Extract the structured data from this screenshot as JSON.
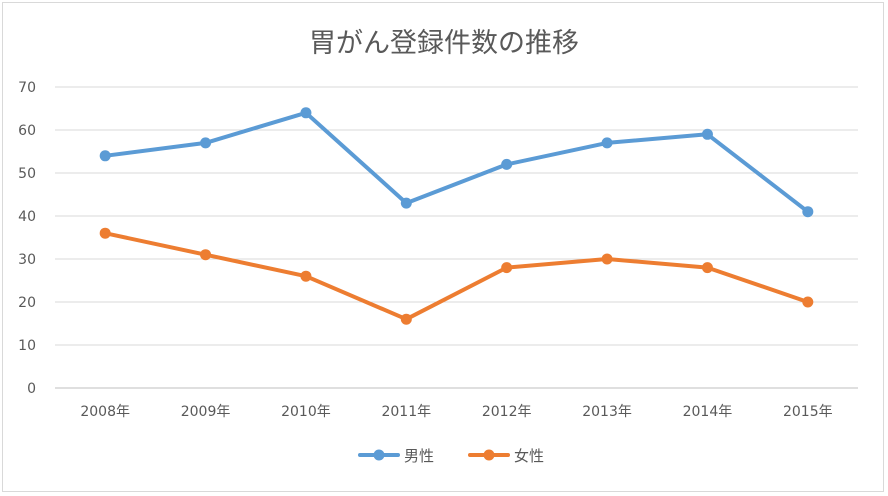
{
  "chart_data": {
    "type": "line",
    "title": "胃がん登録件数の推移",
    "xlabel": "",
    "ylabel": "",
    "categories": [
      "2008年",
      "2009年",
      "2010年",
      "2011年",
      "2012年",
      "2013年",
      "2014年",
      "2015年"
    ],
    "series": [
      {
        "name": "男性",
        "color": "#5b9bd5",
        "values": [
          54,
          57,
          64,
          43,
          52,
          57,
          59,
          41
        ]
      },
      {
        "name": "女性",
        "color": "#ed7d31",
        "values": [
          36,
          31,
          26,
          16,
          28,
          30,
          28,
          20
        ]
      }
    ],
    "ylim": [
      0,
      70
    ],
    "yticks": [
      0,
      10,
      20,
      30,
      40,
      50,
      60,
      70
    ],
    "grid": true,
    "legend_position": "bottom"
  }
}
